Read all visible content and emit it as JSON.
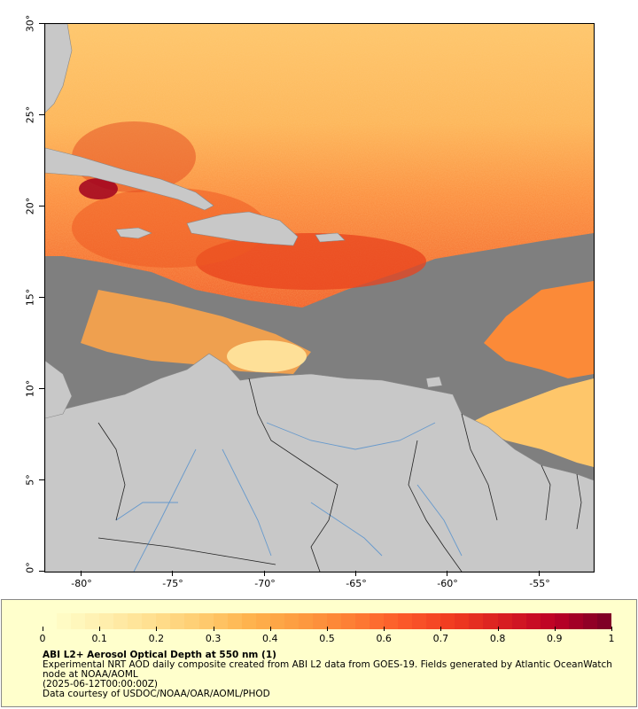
{
  "map": {
    "title": "ABI L2+ Aerosol Optical Depth at 550 nm (1)",
    "description": "Experimental NRT AOD daily composite created from ABI L2 data from GOES-19. Fields generated by Atlantic OceanWatch node at NOAA/AOML",
    "date": "(2025-06-12T00:00:00Z)",
    "credit": "Data courtesy of USDOC/NOAA/OAR/AOML/PHOD",
    "lat_ticks": [
      "30°",
      "25°",
      "20°",
      "15°",
      "10°",
      "5°",
      "0°"
    ],
    "lon_ticks": [
      "-80°",
      "-75°",
      "-70°",
      "-65°",
      "-60°",
      "-55°"
    ],
    "lat_range": [
      0,
      30
    ],
    "lon_range": [
      -82,
      -52
    ],
    "colors": {
      "land": "#c8c8c8",
      "no_data": "#7f7f7f",
      "rivers": "#6699cc",
      "borders": "#222222"
    }
  },
  "colorbar": {
    "labels": [
      "0",
      "0.1",
      "0.2",
      "0.3",
      "0.4",
      "0.5",
      "0.6",
      "0.7",
      "0.8",
      "0.9",
      "1"
    ],
    "range": [
      0,
      1
    ],
    "colors": [
      "#ffffcc",
      "#fff0b0",
      "#ffe090",
      "#fecc70",
      "#feb24c",
      "#fd9a40",
      "#fd7e34",
      "#fc5a2a",
      "#f03b20",
      "#d81e22",
      "#bd0026",
      "#800026"
    ]
  }
}
